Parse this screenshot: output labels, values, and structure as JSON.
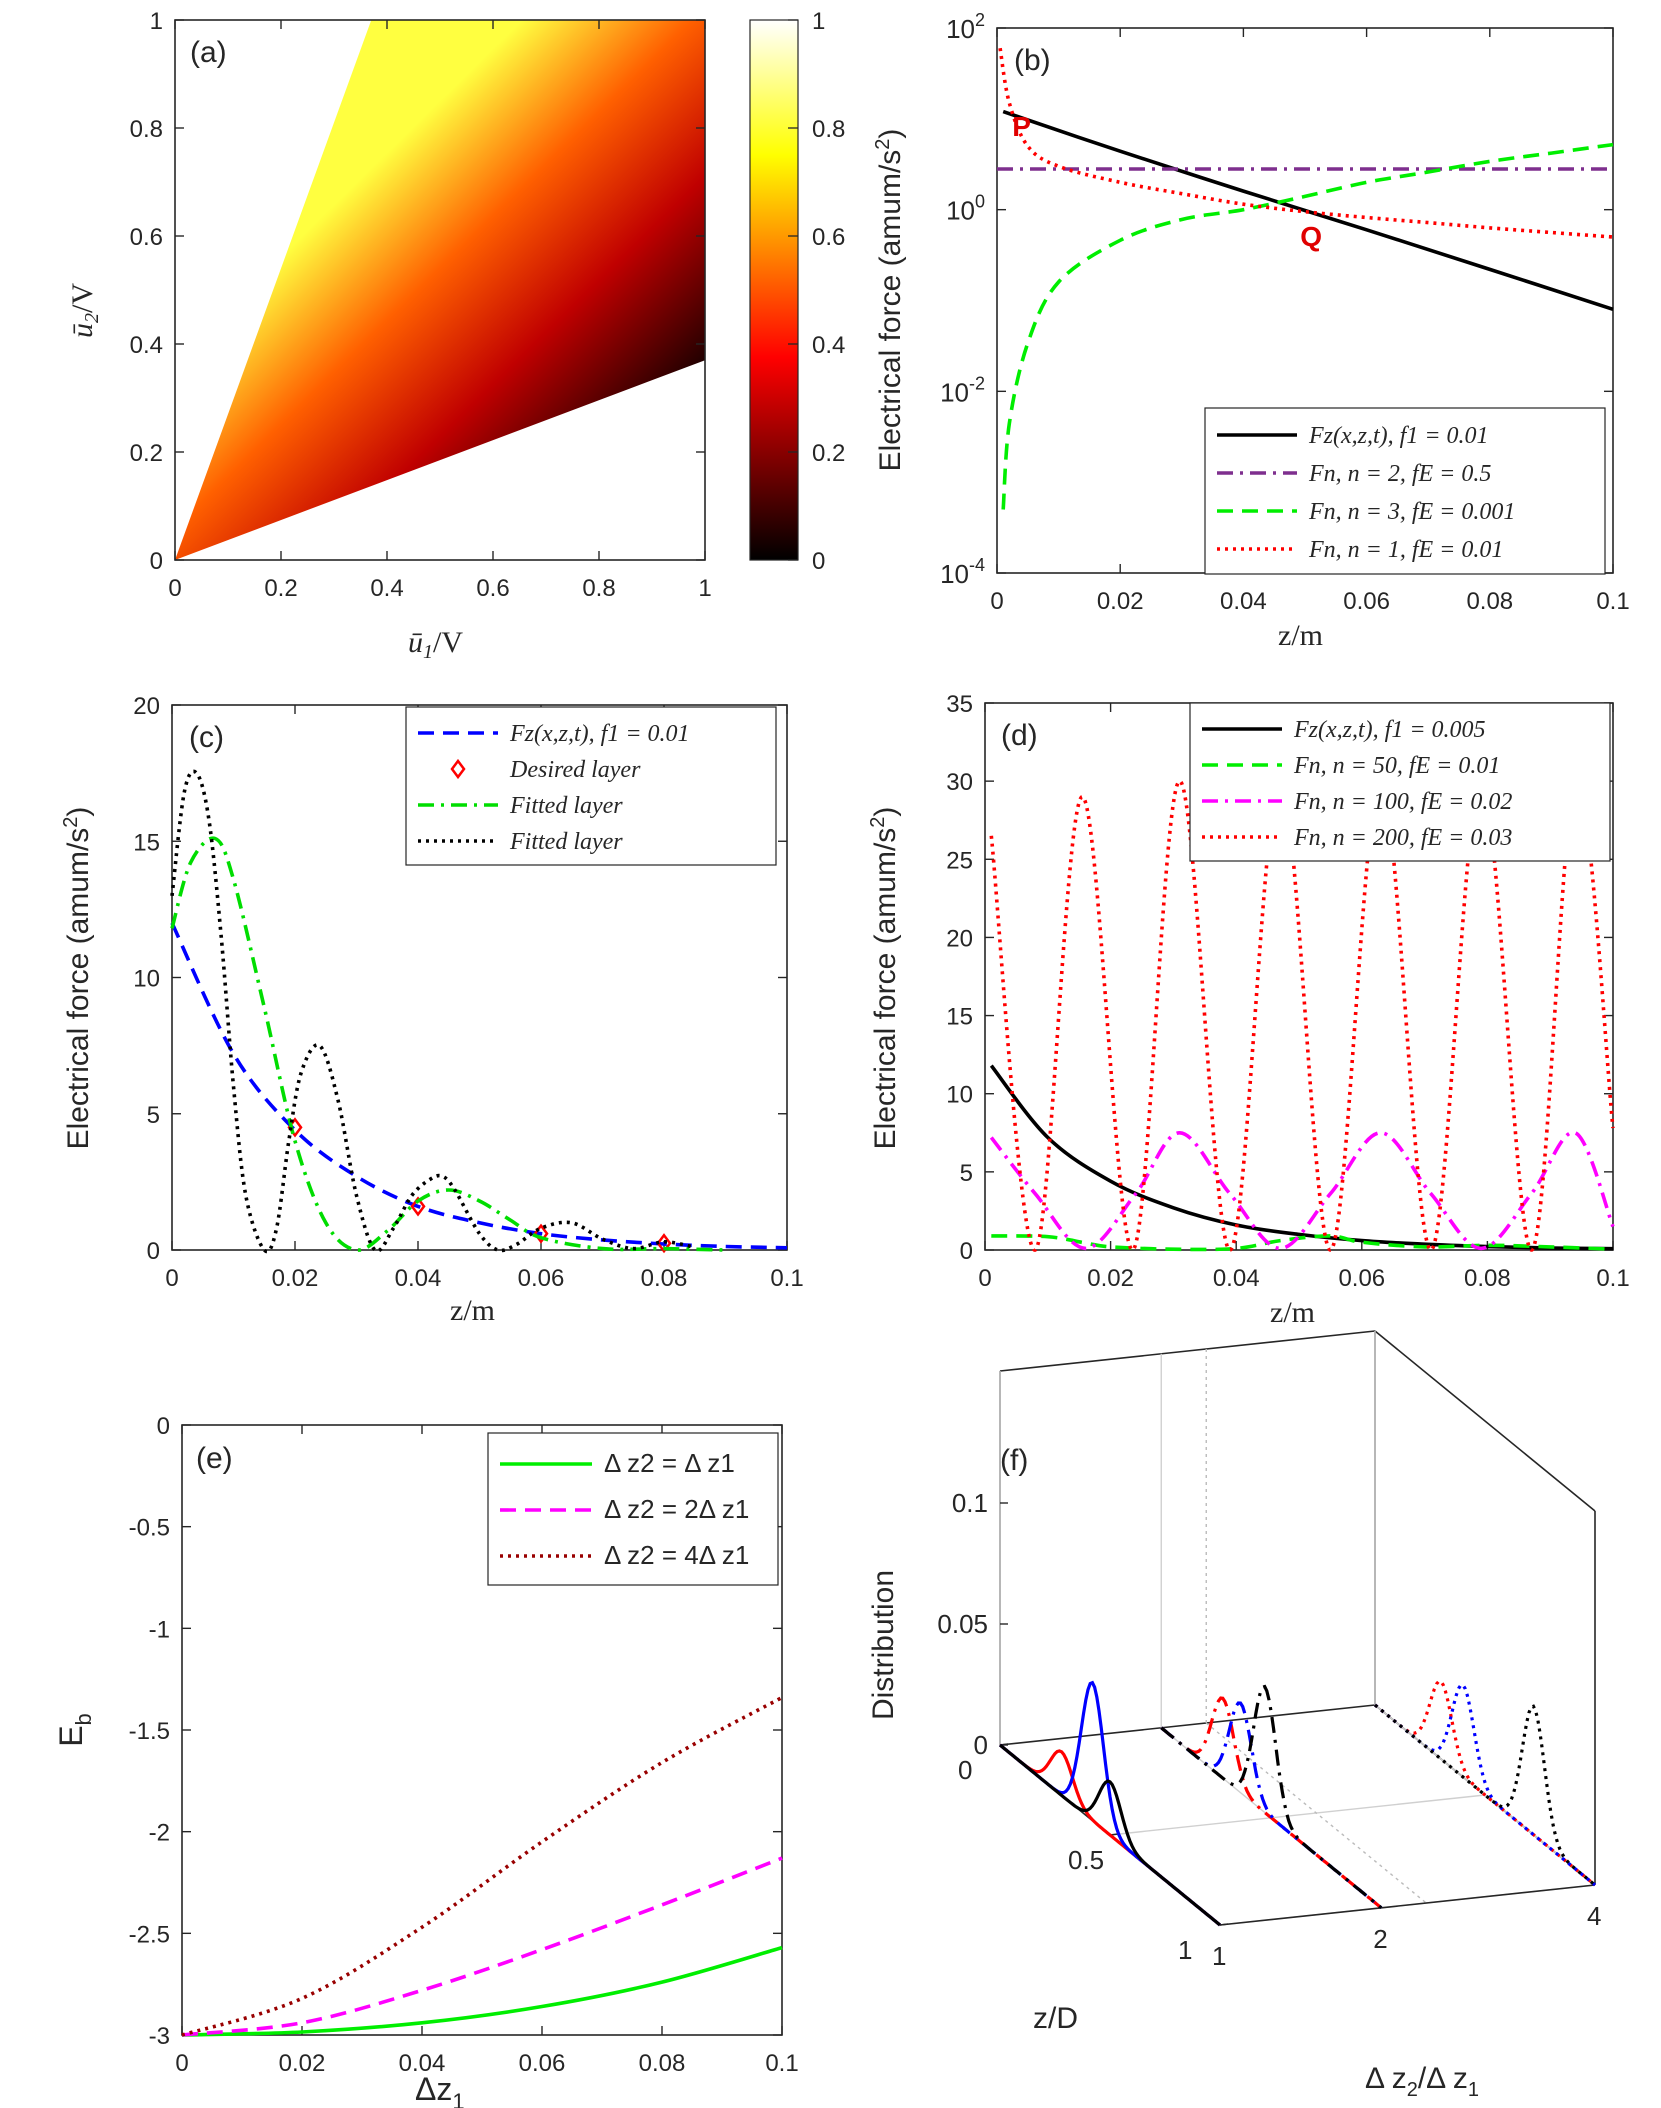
{
  "chart_data": [
    {
      "panel": "(a)",
      "type": "heatmap",
      "xlabel": "ū1/V",
      "ylabel": "ū2/V",
      "xlim": [
        0,
        1
      ],
      "ylim": [
        0,
        1
      ],
      "xticks": [
        0,
        0.2,
        0.4,
        0.6,
        0.8,
        1
      ],
      "yticks": [
        0,
        0.2,
        0.4,
        0.6,
        0.8,
        1
      ],
      "xtick_labels": [
        "0",
        "0.2",
        "0.4",
        "0.6",
        "0.8",
        "1"
      ],
      "ytick_labels": [
        "0",
        "0.2",
        "0.4",
        "0.6",
        "0.8",
        "1"
      ],
      "filled_wedge": {
        "lower_edge_slope": 0.37,
        "upper_edge_slope": 2.7,
        "value_at_lower_edge": 0,
        "value_at_upper_edge": 1
      },
      "colorbar": {
        "range": [
          0,
          1
        ],
        "ticks": [
          0,
          0.2,
          0.4,
          0.6,
          0.8,
          1
        ],
        "tick_labels": [
          "0",
          "0.2",
          "0.4",
          "0.6",
          "0.8",
          "1"
        ],
        "colormap": "hot",
        "colors": [
          "#000000",
          "#b40000",
          "#ff5a00",
          "#ffb400",
          "#ffff50"
        ]
      }
    },
    {
      "panel": "(b)",
      "type": "line",
      "yscale": "log",
      "xlabel": "z/m",
      "ylabel": "Electrical force (amum/s2)",
      "xlim": [
        0,
        0.1
      ],
      "ylim": [
        0.0001,
        100
      ],
      "xticks": [
        0,
        0.02,
        0.04,
        0.06,
        0.08,
        0.1
      ],
      "xtick_labels": [
        "0",
        "0.02",
        "0.04",
        "0.06",
        "0.08",
        "0.1"
      ],
      "yticks": [
        0.0001,
        0.01,
        1,
        100
      ],
      "ytick_labels": [
        {
          "base": "10",
          "exp": "-4"
        },
        {
          "base": "10",
          "exp": "-2"
        },
        {
          "base": "10",
          "exp": "0"
        },
        {
          "base": "10",
          "exp": "2"
        }
      ],
      "legend_position": "bottom-right",
      "series": [
        {
          "name": "Fz(x,z,t), f1 = 0.01",
          "color": "#000000",
          "style": "solid",
          "x": [
            0.001,
            0.02,
            0.04,
            0.06,
            0.08,
            0.1
          ],
          "y": [
            12,
            4.4,
            1.6,
            0.6,
            0.22,
            0.08
          ]
        },
        {
          "name": "Fn, n = 2, fE = 0.5",
          "color": "#7e2f8e",
          "style": "dashdot",
          "x": [
            0,
            0.1
          ],
          "y": [
            2.8,
            2.8
          ]
        },
        {
          "name": "Fn, n = 3, fE = 0.001",
          "color": "#00ee00",
          "style": "dashed",
          "x": [
            0.001,
            0.002,
            0.005,
            0.01,
            0.02,
            0.03,
            0.04,
            0.05,
            0.06,
            0.07,
            0.08,
            0.09,
            0.1
          ],
          "y": [
            0.0005,
            0.0044,
            0.034,
            0.16,
            0.46,
            0.78,
            1.0,
            1.4,
            2.0,
            2.6,
            3.4,
            4.2,
            5.2
          ]
        },
        {
          "name": "Fn, n = 1, fE = 0.01",
          "color": "#ff0000",
          "style": "dotted",
          "x": [
            0.0005,
            0.002,
            0.005,
            0.01,
            0.02,
            0.03,
            0.04,
            0.05,
            0.06,
            0.07,
            0.08,
            0.09,
            0.1
          ],
          "y": [
            60,
            15,
            5.0,
            3.0,
            2.0,
            1.5,
            1.15,
            0.95,
            0.82,
            0.72,
            0.63,
            0.56,
            0.5
          ]
        }
      ],
      "annotations": [
        {
          "text": "P",
          "x": 0.004,
          "y": 6.5,
          "color": "#e00000"
        },
        {
          "text": "Q",
          "x": 0.051,
          "y": 0.4,
          "color": "#e00000"
        }
      ]
    },
    {
      "panel": "(c)",
      "type": "line",
      "xlabel": "z/m",
      "ylabel": "Electrical force (amum/s2)",
      "xlim": [
        0,
        0.1
      ],
      "ylim": [
        0,
        20
      ],
      "xticks": [
        0,
        0.02,
        0.04,
        0.06,
        0.08,
        0.1
      ],
      "xtick_labels": [
        "0",
        "0.02",
        "0.04",
        "0.06",
        "0.08",
        "0.1"
      ],
      "yticks": [
        0,
        5,
        10,
        15,
        20
      ],
      "ytick_labels": [
        "0",
        "5",
        "10",
        "15",
        "20"
      ],
      "legend_position": "top-right",
      "series": [
        {
          "name": "Fz(x,z,t), f1 = 0.01",
          "color": "#0000ff",
          "style": "dashed",
          "x": [
            0,
            0.01,
            0.02,
            0.03,
            0.04,
            0.05,
            0.06,
            0.07,
            0.08,
            0.09,
            0.1
          ],
          "y": [
            12,
            7.2,
            4.4,
            2.7,
            1.6,
            1.0,
            0.6,
            0.37,
            0.22,
            0.13,
            0.08
          ]
        },
        {
          "name": "Desired layer",
          "color": "#ff0000",
          "style": "diamond-markers",
          "x": [
            0.02,
            0.04,
            0.06,
            0.08
          ],
          "y": [
            4.5,
            1.6,
            0.6,
            0.25
          ]
        },
        {
          "name": "Fitted layer",
          "color": "#00dd00",
          "style": "dashdot",
          "x": [
            0,
            0.003,
            0.007,
            0.01,
            0.015,
            0.02,
            0.025,
            0.03,
            0.035,
            0.04,
            0.045,
            0.05,
            0.055,
            0.06,
            0.07,
            0.08,
            0.09
          ],
          "y": [
            11.8,
            14.2,
            15.1,
            13.6,
            8.9,
            4.0,
            1.0,
            0.0,
            0.7,
            1.8,
            2.2,
            1.8,
            1.1,
            0.45,
            0.05,
            0.05,
            0.0
          ]
        },
        {
          "name": "Fitted layer",
          "color": "#000000",
          "style": "dotted",
          "x": [
            0,
            0.002,
            0.004,
            0.006,
            0.008,
            0.01,
            0.012,
            0.015,
            0.017,
            0.019,
            0.021,
            0.024,
            0.027,
            0.03,
            0.033,
            0.036,
            0.039,
            0.042,
            0.044,
            0.046,
            0.05,
            0.053,
            0.056,
            0.06,
            0.065,
            0.07,
            0.075,
            0.08,
            0.085
          ],
          "y": [
            13,
            16.8,
            17.5,
            15.8,
            11.5,
            6,
            2,
            0,
            0.8,
            4,
            6.5,
            7.5,
            5.5,
            2,
            0,
            0.8,
            2,
            2.6,
            2.7,
            2.2,
            0.6,
            0,
            0.2,
            0.8,
            1.0,
            0.4,
            0.05,
            0.3,
            0.1
          ]
        }
      ]
    },
    {
      "panel": "(d)",
      "type": "line",
      "xlabel": "z/m",
      "ylabel": "Electrical force (amum/s2)",
      "xlim": [
        0,
        0.1
      ],
      "ylim": [
        0,
        35
      ],
      "xticks": [
        0,
        0.02,
        0.04,
        0.06,
        0.08,
        0.1
      ],
      "xtick_labels": [
        "0",
        "0.02",
        "0.04",
        "0.06",
        "0.08",
        "0.1"
      ],
      "yticks": [
        0,
        5,
        10,
        15,
        20,
        25,
        30,
        35
      ],
      "ytick_labels": [
        "0",
        "5",
        "10",
        "15",
        "20",
        "25",
        "30",
        "35"
      ],
      "legend_position": "top-right",
      "series": [
        {
          "name": "Fz(x,z,t), f1 = 0.005",
          "color": "#000000",
          "style": "solid",
          "x": [
            0.001,
            0.01,
            0.02,
            0.03,
            0.04,
            0.05,
            0.06,
            0.07,
            0.08,
            0.09,
            0.1
          ],
          "y": [
            11.8,
            7.2,
            4.4,
            2.7,
            1.6,
            1.0,
            0.6,
            0.37,
            0.22,
            0.13,
            0.08
          ]
        },
        {
          "name": "Fn, n = 50, fE = 0.01",
          "color": "#00ee00",
          "style": "dashed",
          "x": [
            0.001,
            0.01,
            0.016,
            0.02,
            0.03,
            0.04,
            0.047,
            0.055,
            0.06,
            0.07,
            0.08,
            0.09,
            0.1
          ],
          "y": [
            0.9,
            0.85,
            0.45,
            0.2,
            0.05,
            0.1,
            0.6,
            0.9,
            0.5,
            0.2,
            0.3,
            0.2,
            0.05
          ]
        },
        {
          "name": "Fn, n = 100, fE = 0.02",
          "color": "#ff00ff",
          "style": "dashdot",
          "x": [
            0.001,
            0.008,
            0.016,
            0.024,
            0.031,
            0.039,
            0.047,
            0.055,
            0.063,
            0.071,
            0.079,
            0.087,
            0.094,
            0.1
          ],
          "y": [
            7.2,
            3.6,
            0.1,
            3.6,
            7.5,
            3.6,
            0.1,
            3.6,
            7.5,
            3.6,
            0.1,
            3.6,
            7.5,
            1.5
          ]
        },
        {
          "name": "Fn, n = 200, fE = 0.03",
          "color": "#ff0000",
          "style": "dotted",
          "x": [
            0.001,
            0.008,
            0.0155,
            0.0235,
            0.031,
            0.039,
            0.047,
            0.055,
            0.063,
            0.071,
            0.079,
            0.087,
            0.094,
            0.1
          ],
          "y": [
            26.5,
            0,
            29,
            0,
            30,
            0,
            30,
            0,
            30,
            0,
            30,
            0,
            30,
            7.8
          ]
        }
      ]
    },
    {
      "panel": "(e)",
      "type": "line",
      "xlabel": "Δz1",
      "ylabel": "Eb",
      "xlim": [
        0,
        0.1
      ],
      "ylim": [
        -3,
        0
      ],
      "xticks": [
        0,
        0.02,
        0.04,
        0.06,
        0.08,
        0.1
      ],
      "xtick_labels": [
        "0",
        "0.02",
        "0.04",
        "0.06",
        "0.08",
        "0.1"
      ],
      "yticks": [
        -3,
        -2.5,
        -2,
        -1.5,
        -1,
        -0.5,
        0
      ],
      "ytick_labels": [
        "-3",
        "-2.5",
        "-2",
        "-1.5",
        "-1",
        "-0.5",
        "0"
      ],
      "legend_position": "top-right",
      "series": [
        {
          "name": "Δ z2 = Δ z1",
          "color": "#00ee00",
          "style": "solid",
          "x": [
            0,
            0.02,
            0.04,
            0.06,
            0.08,
            0.1
          ],
          "y": [
            -3,
            -2.985,
            -2.94,
            -2.86,
            -2.74,
            -2.57
          ]
        },
        {
          "name": "Δ z2 = 2Δ z1",
          "color": "#ff00ff",
          "style": "dashed",
          "x": [
            0,
            0.02,
            0.04,
            0.06,
            0.08,
            0.1
          ],
          "y": [
            -3,
            -2.94,
            -2.78,
            -2.58,
            -2.36,
            -2.13
          ]
        },
        {
          "name": "Δ z2 = 4Δ z1",
          "color": "#990000",
          "style": "dotted",
          "x": [
            0,
            0.02,
            0.04,
            0.06,
            0.08,
            0.1
          ],
          "y": [
            -3,
            -2.82,
            -2.47,
            -2.05,
            -1.66,
            -1.34
          ]
        }
      ]
    },
    {
      "panel": "(f)",
      "type": "line-3d",
      "xlabel": "z/D",
      "ylabel": "Δ z2/Δ z1",
      "zlabel": "Distribution",
      "xticks": [
        0,
        0.5,
        1
      ],
      "xtick_labels": [
        "0",
        "0.5",
        "1"
      ],
      "yticks": [
        1,
        2,
        4
      ],
      "ytick_labels": [
        "1",
        "2",
        "4"
      ],
      "zticks": [
        0,
        0.05,
        0.1
      ],
      "ztick_labels": [
        "0",
        "0.05",
        "0.1"
      ],
      "groups": [
        {
          "ratio": 1,
          "style": "solid",
          "peaks": [
            {
              "color": "#ff0000",
              "z": 0.28,
              "height": 0.018
            },
            {
              "color": "#0000ff",
              "z": 0.42,
              "height": 0.057
            },
            {
              "color": "#000000",
              "z": 0.5,
              "height": 0.022
            }
          ]
        },
        {
          "ratio": 2,
          "style": "dashdot",
          "peaks": [
            {
              "color": "#ff0000",
              "z": 0.28,
              "height": 0.033
            },
            {
              "color": "#0000ff",
              "z": 0.36,
              "height": 0.037
            },
            {
              "color": "#000000",
              "z": 0.47,
              "height": 0.052
            }
          ]
        },
        {
          "ratio": 4,
          "style": "dotted",
          "peaks": [
            {
              "color": "#ff0000",
              "z": 0.3,
              "height": 0.032
            },
            {
              "color": "#0000ff",
              "z": 0.4,
              "height": 0.038
            },
            {
              "color": "#000000",
              "z": 0.72,
              "height": 0.053
            }
          ]
        }
      ]
    }
  ],
  "labels": {
    "a": "(a)",
    "b": "(b)",
    "c": "(c)",
    "d": "(d)",
    "e": "(e)",
    "f": "(f)"
  },
  "axis_text": {
    "z_m": "z/m",
    "ef_prefix": "Electrical force (amum/s",
    "ef_sup": "2",
    "ef_suffix": ")",
    "u1": "ū",
    "u1_sub": "1",
    "u2": "ū",
    "u2_sub": "2",
    "per_v": "/V",
    "eb": "E",
    "eb_sub": "b",
    "dz1": "Δz",
    "dz1_sub": "1",
    "zd": "z/D",
    "dist": "Distribution",
    "ratio_a": "Δ z",
    "ratio_a_sub": "2",
    "ratio_b": "/Δ z",
    "ratio_b_sub": "1"
  }
}
